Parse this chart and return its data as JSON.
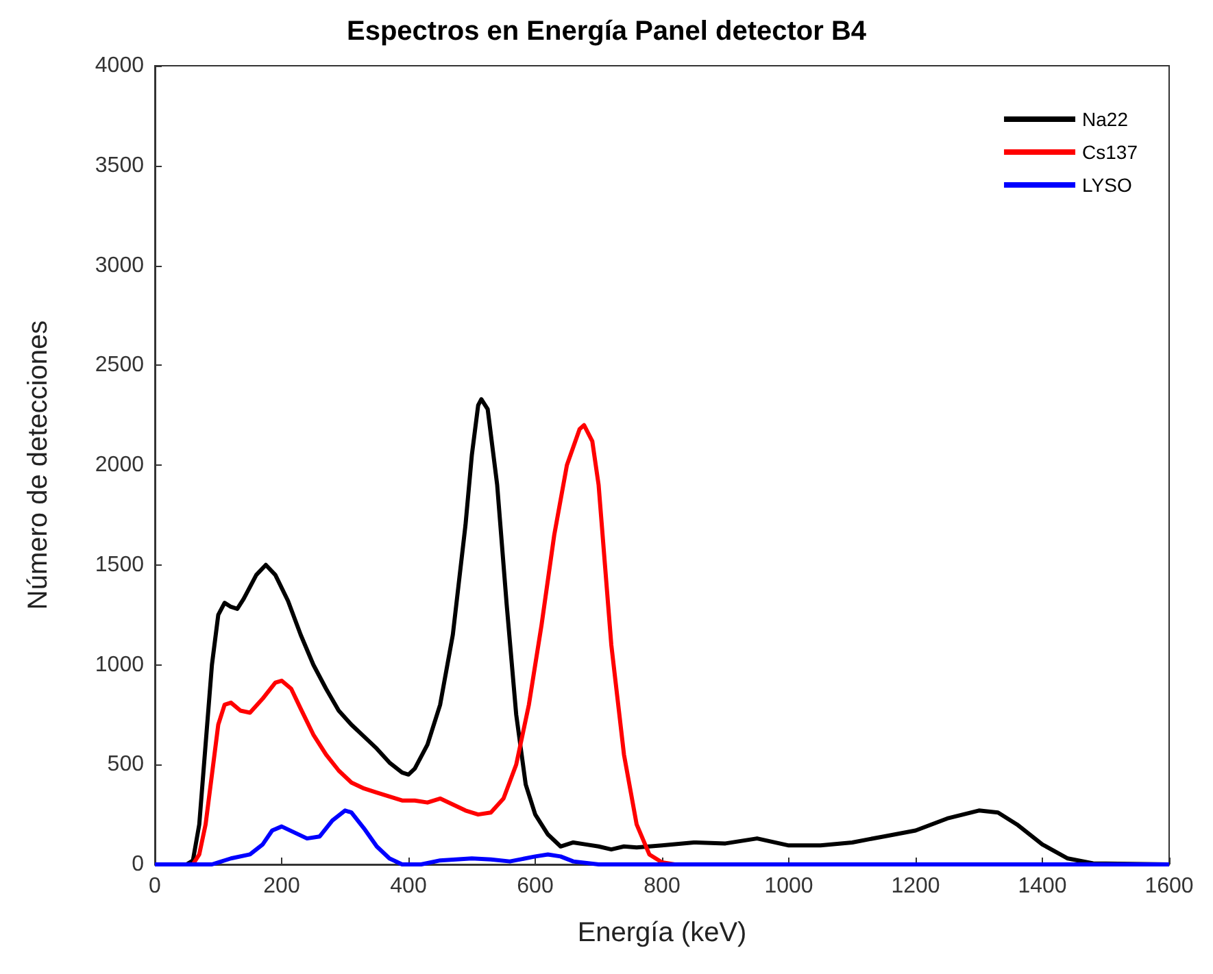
{
  "chart_data": {
    "type": "line",
    "title": "Espectros en Energía Panel detector B4",
    "xlabel": "Energía (keV)",
    "ylabel": "Número de detecciones",
    "xlim": [
      0,
      1600
    ],
    "xticks": [
      0,
      200,
      400,
      600,
      800,
      1000,
      1200,
      1400,
      1600
    ],
    "ylim": [
      0,
      4000
    ],
    "yticks": [
      0,
      500,
      1000,
      1500,
      2000,
      2500,
      3000,
      3500,
      4000
    ],
    "grid": false,
    "legend": "top right",
    "marker": "none",
    "line_style": "solid",
    "series": [
      {
        "name": "Na22",
        "color": "#000000",
        "x": [
          0,
          50,
          60,
          70,
          80,
          90,
          100,
          110,
          120,
          130,
          140,
          160,
          175,
          190,
          210,
          230,
          250,
          270,
          290,
          310,
          330,
          350,
          370,
          390,
          400,
          410,
          430,
          450,
          470,
          490,
          500,
          510,
          515,
          525,
          540,
          555,
          570,
          585,
          600,
          620,
          640,
          660,
          680,
          700,
          720,
          740,
          760,
          800,
          850,
          900,
          950,
          1000,
          1050,
          1100,
          1150,
          1200,
          1250,
          1300,
          1330,
          1360,
          1400,
          1440,
          1480,
          1600
        ],
        "values": [
          0,
          0,
          20,
          200,
          600,
          1000,
          1250,
          1310,
          1290,
          1280,
          1330,
          1450,
          1500,
          1450,
          1320,
          1150,
          1000,
          880,
          770,
          700,
          640,
          580,
          510,
          460,
          450,
          480,
          600,
          800,
          1150,
          1700,
          2050,
          2300,
          2330,
          2280,
          1900,
          1300,
          750,
          400,
          250,
          150,
          90,
          110,
          100,
          90,
          75,
          90,
          85,
          95,
          110,
          105,
          130,
          95,
          95,
          110,
          140,
          170,
          230,
          270,
          260,
          200,
          100,
          30,
          5,
          0
        ]
      },
      {
        "name": "Cs137",
        "color": "#ff0000",
        "x": [
          0,
          60,
          70,
          80,
          90,
          100,
          110,
          120,
          135,
          150,
          170,
          190,
          200,
          215,
          230,
          250,
          270,
          290,
          310,
          330,
          350,
          370,
          390,
          410,
          430,
          450,
          470,
          490,
          510,
          530,
          550,
          570,
          590,
          610,
          630,
          650,
          670,
          677,
          690,
          700,
          710,
          720,
          740,
          760,
          780,
          800,
          820,
          1600
        ],
        "values": [
          0,
          0,
          50,
          200,
          450,
          700,
          800,
          810,
          770,
          760,
          830,
          910,
          920,
          880,
          780,
          650,
          550,
          470,
          410,
          380,
          360,
          340,
          320,
          320,
          310,
          330,
          300,
          270,
          250,
          260,
          330,
          500,
          800,
          1200,
          1650,
          2000,
          2180,
          2200,
          2120,
          1900,
          1500,
          1100,
          550,
          200,
          50,
          10,
          0,
          0
        ]
      },
      {
        "name": "LYSO",
        "color": "#0000ff",
        "x": [
          0,
          90,
          100,
          120,
          150,
          170,
          185,
          200,
          220,
          240,
          260,
          280,
          300,
          310,
          330,
          350,
          370,
          390,
          420,
          450,
          500,
          530,
          560,
          600,
          620,
          640,
          660,
          700,
          1600
        ],
        "values": [
          0,
          0,
          10,
          30,
          50,
          100,
          170,
          190,
          160,
          130,
          140,
          220,
          270,
          260,
          180,
          90,
          30,
          0,
          0,
          20,
          30,
          25,
          15,
          40,
          50,
          40,
          15,
          0,
          0
        ]
      }
    ]
  }
}
